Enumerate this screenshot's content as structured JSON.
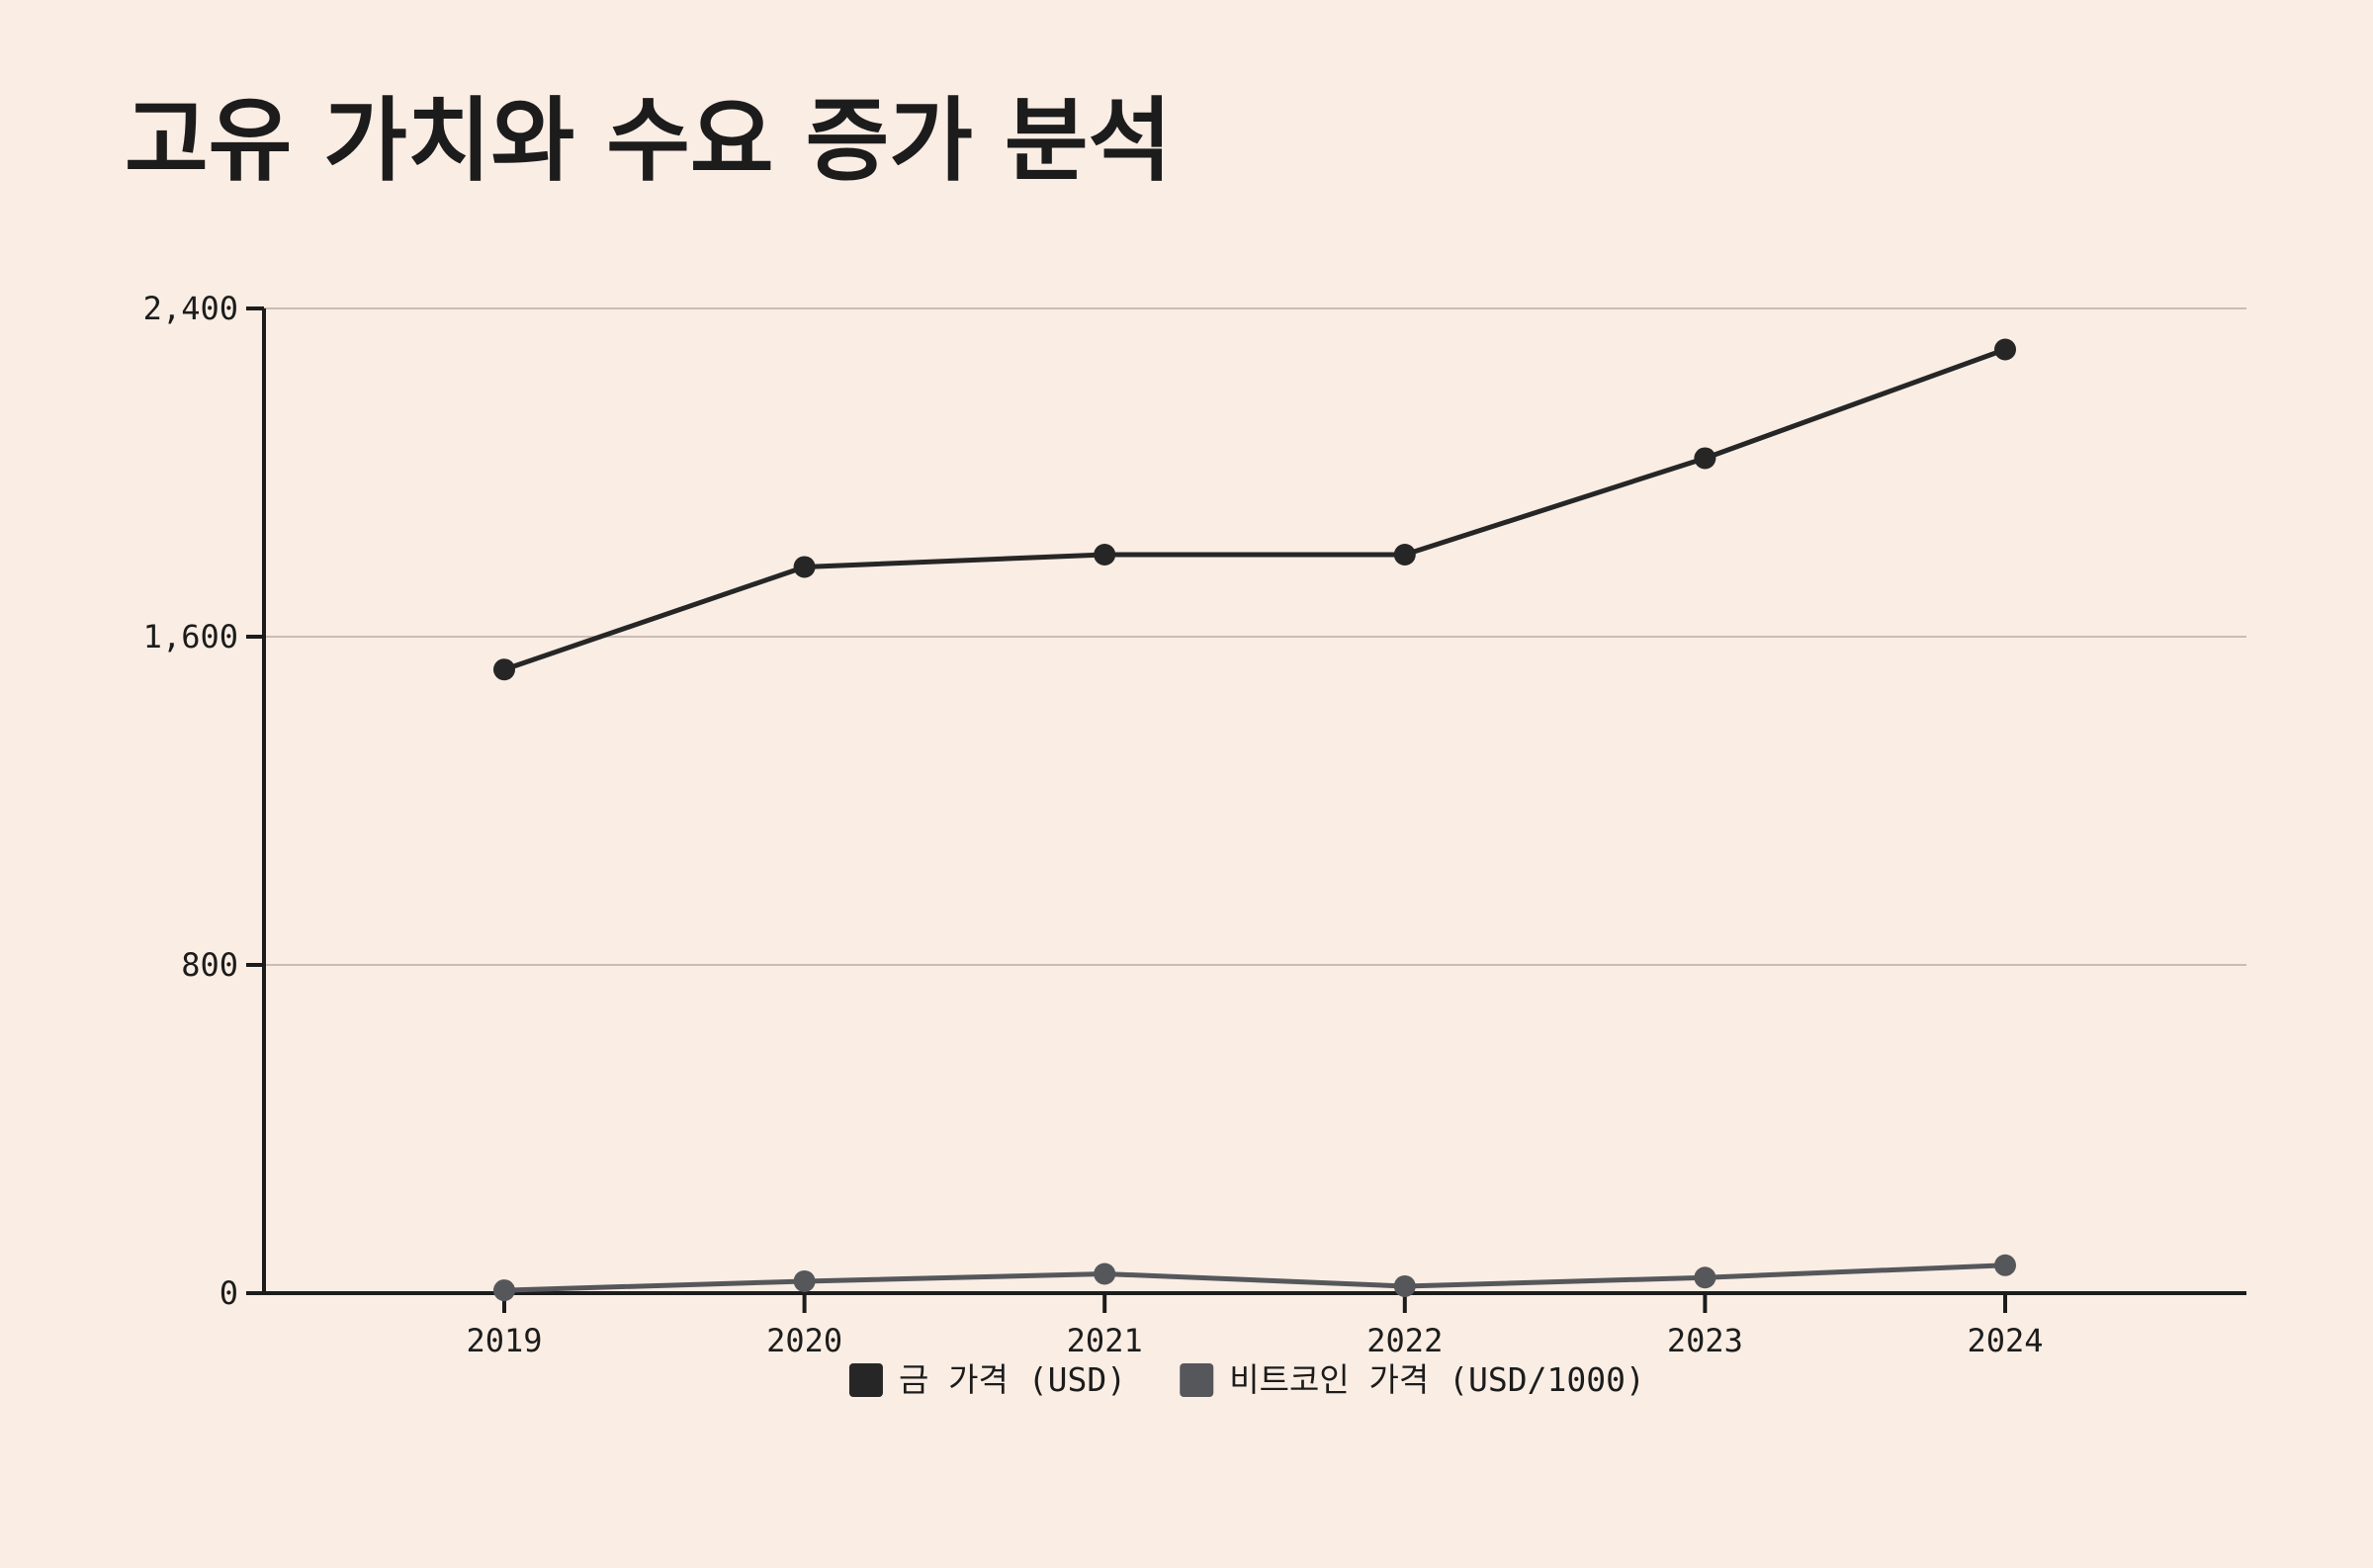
{
  "title": "고유 가치와 수요 증가 분석",
  "chart_data": {
    "type": "line",
    "title": "고유 가치와 수요 증가 분석",
    "x": [
      "2019",
      "2020",
      "2021",
      "2022",
      "2023",
      "2024"
    ],
    "series": [
      {
        "name": "금 가격 (USD)",
        "color": "#262626",
        "values": [
          1520,
          1770,
          1800,
          1800,
          2035,
          2300
        ]
      },
      {
        "name": "비트코인 가격 (USD/1000)",
        "color": "#55575b",
        "values": [
          7,
          29,
          47,
          17,
          38,
          68
        ]
      }
    ],
    "ylim": [
      0,
      2400
    ],
    "yticks": [
      0,
      800,
      1600,
      2400
    ],
    "ytick_labels": [
      "0",
      "800",
      "1,600",
      "2,400"
    ],
    "grid": true,
    "legend_position": "bottom"
  }
}
